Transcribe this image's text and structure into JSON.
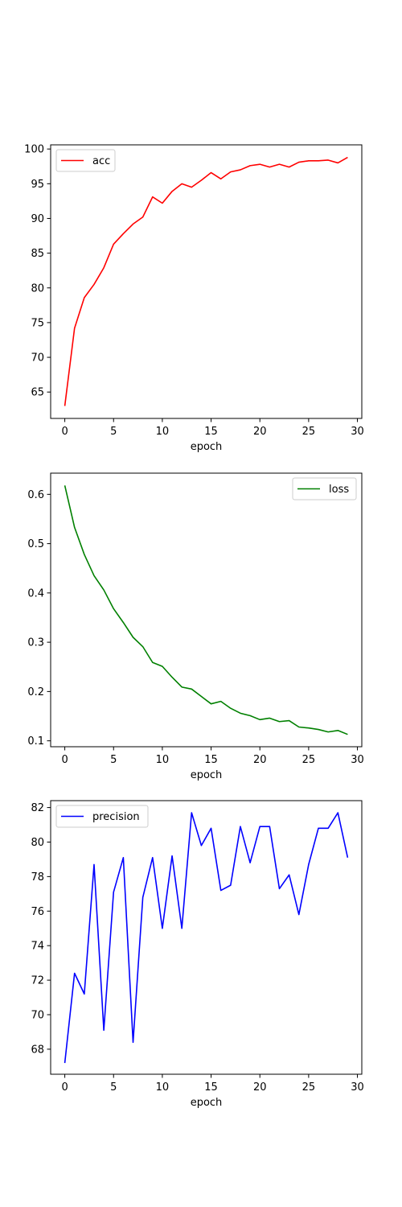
{
  "chart_data": [
    {
      "type": "line",
      "xlabel": "epoch",
      "ylabel": "",
      "x": [
        0,
        1,
        2,
        3,
        4,
        5,
        6,
        7,
        8,
        9,
        10,
        11,
        12,
        13,
        14,
        15,
        16,
        17,
        18,
        19,
        20,
        21,
        22,
        23,
        24,
        25,
        26,
        27,
        28,
        29
      ],
      "xlim": [
        -1.45,
        30.45
      ],
      "xticks": [
        0,
        5,
        10,
        15,
        20,
        25,
        30
      ],
      "ylim": [
        61.2,
        100.6
      ],
      "yticks": [
        65,
        70,
        75,
        80,
        85,
        90,
        95,
        100
      ],
      "legend_position": "upper left",
      "grid": false,
      "series": [
        {
          "name": "acc",
          "color": "#ff0000",
          "values": [
            63.0,
            74.2,
            78.6,
            80.5,
            82.9,
            86.3,
            87.8,
            89.2,
            90.2,
            93.1,
            92.2,
            93.9,
            95.0,
            94.5,
            95.5,
            96.6,
            95.7,
            96.7,
            97.0,
            97.6,
            97.8,
            97.4,
            97.8,
            97.4,
            98.1,
            98.3,
            98.3,
            98.4,
            98.0,
            98.8
          ]
        }
      ]
    },
    {
      "type": "line",
      "xlabel": "epoch",
      "ylabel": "",
      "x": [
        0,
        1,
        2,
        3,
        4,
        5,
        6,
        7,
        8,
        9,
        10,
        11,
        12,
        13,
        14,
        15,
        16,
        17,
        18,
        19,
        20,
        21,
        22,
        23,
        24,
        25,
        26,
        27,
        28,
        29
      ],
      "xlim": [
        -1.45,
        30.45
      ],
      "xticks": [
        0,
        5,
        10,
        15,
        20,
        25,
        30
      ],
      "ylim": [
        0.088,
        0.643
      ],
      "yticks": [
        0.1,
        0.2,
        0.3,
        0.4,
        0.5,
        0.6
      ],
      "legend_position": "upper right",
      "grid": false,
      "series": [
        {
          "name": "loss",
          "color": "#008000",
          "values": [
            0.618,
            0.533,
            0.478,
            0.435,
            0.406,
            0.368,
            0.34,
            0.31,
            0.291,
            0.259,
            0.251,
            0.229,
            0.209,
            0.205,
            0.19,
            0.175,
            0.18,
            0.166,
            0.156,
            0.151,
            0.143,
            0.146,
            0.139,
            0.141,
            0.128,
            0.126,
            0.123,
            0.118,
            0.121,
            0.113
          ]
        }
      ]
    },
    {
      "type": "line",
      "xlabel": "epoch",
      "ylabel": "",
      "x": [
        0,
        1,
        2,
        3,
        4,
        5,
        6,
        7,
        8,
        9,
        10,
        11,
        12,
        13,
        14,
        15,
        16,
        17,
        18,
        19,
        20,
        21,
        22,
        23,
        24,
        25,
        26,
        27,
        28,
        29
      ],
      "xlim": [
        -1.45,
        30.45
      ],
      "xticks": [
        0,
        5,
        10,
        15,
        20,
        25,
        30
      ],
      "ylim": [
        66.55,
        82.4
      ],
      "yticks": [
        68,
        70,
        72,
        74,
        76,
        78,
        80,
        82
      ],
      "legend_position": "upper left",
      "grid": false,
      "series": [
        {
          "name": "precision",
          "color": "#0000ff",
          "values": [
            67.2,
            72.4,
            71.2,
            78.7,
            69.1,
            77.1,
            79.1,
            68.4,
            76.8,
            79.1,
            75.0,
            79.2,
            75.0,
            81.7,
            79.8,
            80.8,
            77.2,
            77.5,
            80.9,
            78.8,
            80.9,
            80.9,
            77.3,
            78.1,
            75.8,
            78.7,
            80.8,
            80.8,
            81.7,
            79.1
          ]
        }
      ]
    }
  ]
}
